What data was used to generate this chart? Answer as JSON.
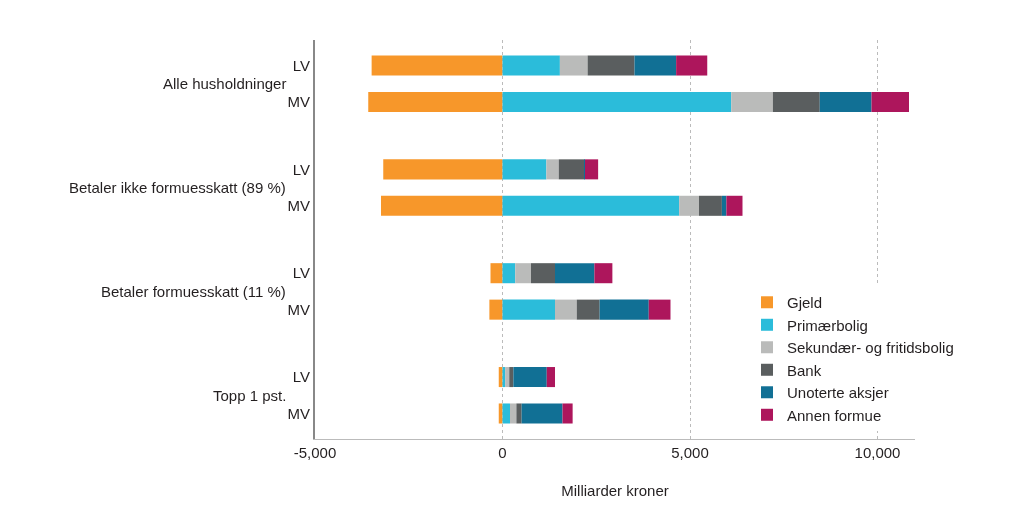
{
  "chart_data": {
    "type": "bar",
    "orientation": "horizontal",
    "stacked": true,
    "xlabel": "Milliarder kroner",
    "categories": [
      "LV",
      "MV",
      "LV",
      "MV",
      "LV",
      "MV",
      "LV",
      "MV"
    ],
    "annotations": [
      "Alle husholdninger",
      "Betaler ikke formuesskatt (89 %)",
      "Betaler formuesskatt (11 %)",
      "Topp 1 pst."
    ],
    "series": [
      {
        "name": "Gjeld",
        "color": "#f7972a",
        "values": [
          -3490,
          -3580,
          -3180,
          -3240,
          -320,
          -350,
          -100,
          -100
        ]
      },
      {
        "name": "Primærbolig",
        "color": "#2bbcda",
        "values": [
          1530,
          6100,
          1170,
          4710,
          340,
          1400,
          70,
          200
        ]
      },
      {
        "name": "Sekundær- og fritidsbolig",
        "color": "#babbba",
        "values": [
          740,
          1110,
          330,
          530,
          420,
          580,
          110,
          170
        ]
      },
      {
        "name": "Bank",
        "color": "#5a5e5f",
        "values": [
          1250,
          1250,
          680,
          610,
          640,
          610,
          110,
          140
        ]
      },
      {
        "name": "Unoterte aksjer",
        "color": "#117095",
        "values": [
          1110,
          1380,
          20,
          120,
          1050,
          1310,
          890,
          1090
        ]
      },
      {
        "name": "Annen formue",
        "color": "#ad165c",
        "values": [
          830,
          1000,
          350,
          430,
          480,
          580,
          220,
          270
        ]
      }
    ],
    "xlim": [
      -5000,
      11000
    ],
    "xticks": [
      {
        "value": -5000,
        "label": "-5,000"
      },
      0,
      {
        "value": 5000,
        "label": "5,000"
      },
      {
        "value": 10000,
        "label": "10,000"
      }
    ],
    "grid": "x",
    "legend": "bottom right"
  }
}
